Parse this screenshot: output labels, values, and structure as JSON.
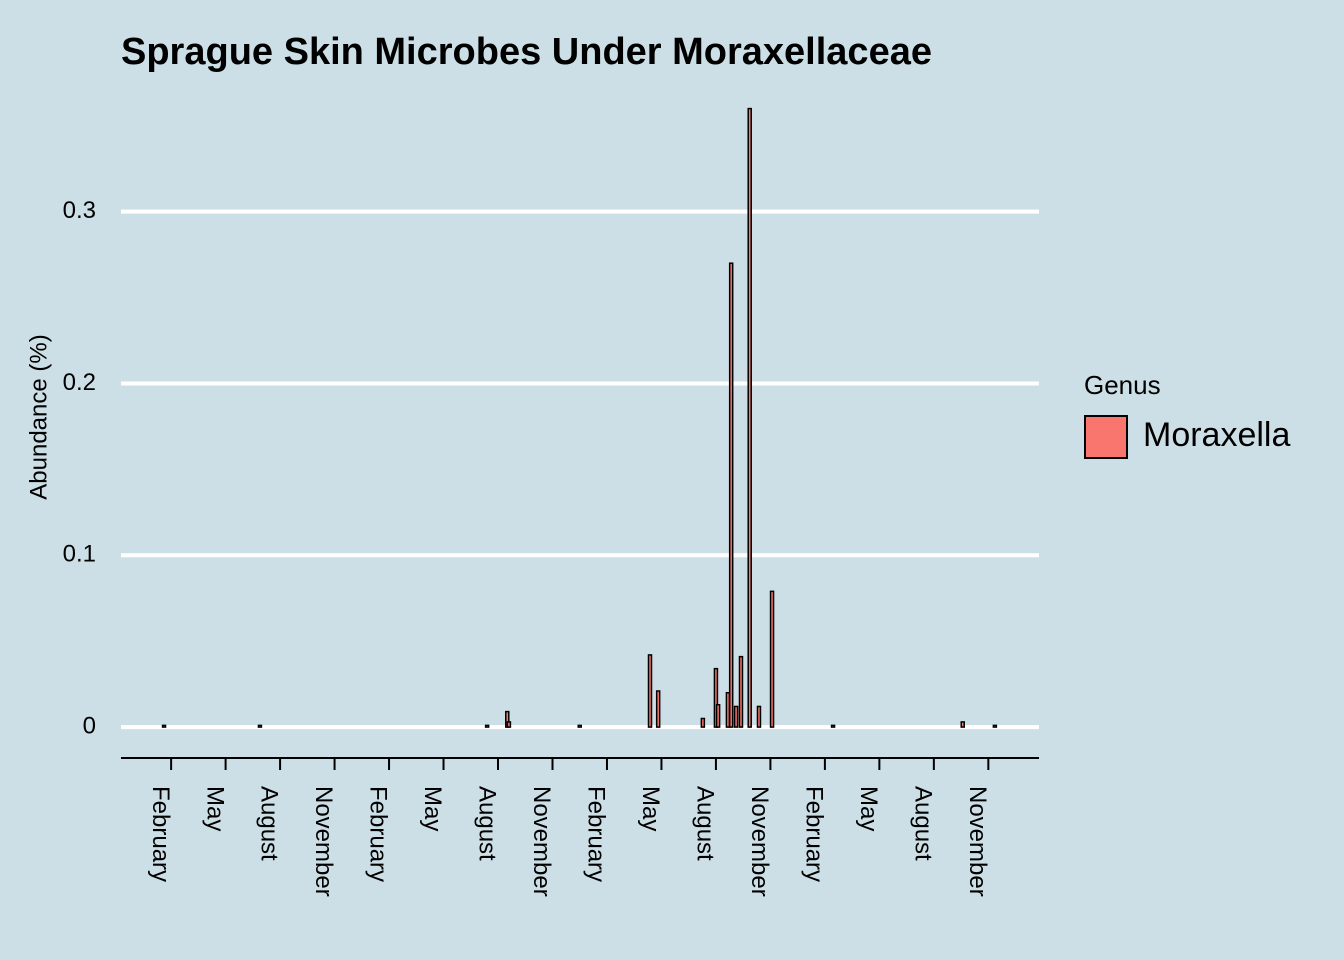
{
  "chart_data": {
    "type": "bar",
    "title": "Sprague Skin Microbes Under Moraxellaceae",
    "y_label": "Abundance (%)",
    "legend_title": "Genus",
    "x": [
      -0.13,
      1.63,
      5.8,
      6.17,
      6.2,
      7.5,
      8.79,
      8.94,
      9.76,
      10.0,
      10.04,
      10.22,
      10.28,
      10.37,
      10.46,
      10.62,
      10.79,
      11.03,
      12.15,
      14.53,
      15.12
    ],
    "series": [
      {
        "name": "Moraxella",
        "color": "#F8766D",
        "values": [
          0.001,
          0.001,
          0.001,
          0.009,
          0.003,
          0.001,
          0.042,
          0.021,
          0.005,
          0.034,
          0.013,
          0.02,
          0.27,
          0.012,
          0.041,
          0.36,
          0.012,
          0.079,
          0.001,
          0.003,
          0.001
        ]
      }
    ],
    "xlim": [
      -0.92,
      15.93
    ],
    "xticks": [
      {
        "value": 0,
        "label": "February"
      },
      {
        "value": 1,
        "label": "May"
      },
      {
        "value": 2,
        "label": "August"
      },
      {
        "value": 3,
        "label": "November"
      },
      {
        "value": 4,
        "label": "February"
      },
      {
        "value": 5,
        "label": "May"
      },
      {
        "value": 6,
        "label": "August"
      },
      {
        "value": 7,
        "label": "November"
      },
      {
        "value": 8,
        "label": "February"
      },
      {
        "value": 9,
        "label": "May"
      },
      {
        "value": 10,
        "label": "August"
      },
      {
        "value": 11,
        "label": "November"
      },
      {
        "value": 12,
        "label": "February"
      },
      {
        "value": 13,
        "label": "May"
      },
      {
        "value": 14,
        "label": "August"
      },
      {
        "value": 15,
        "label": "November"
      }
    ],
    "ylim": [
      -0.018,
      0.365
    ],
    "yticks": [
      0,
      0.1,
      0.2,
      0.3
    ],
    "grid": true,
    "legend": "right"
  }
}
